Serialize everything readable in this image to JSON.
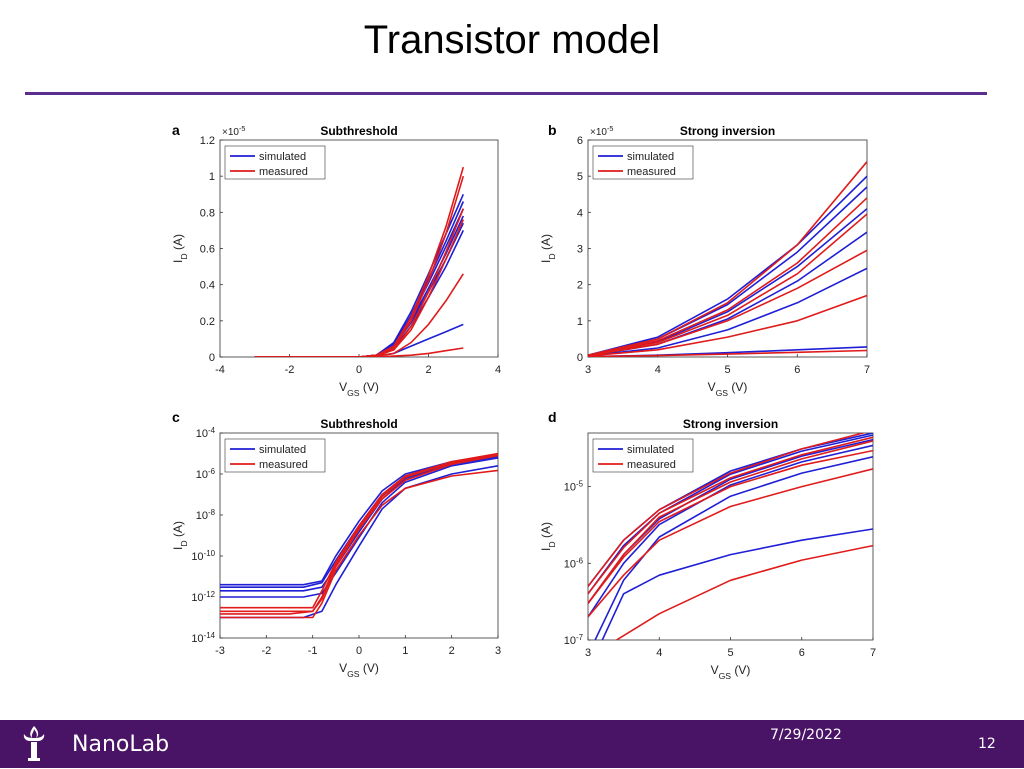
{
  "slide": {
    "title": "Transistor model",
    "footer_label": "NanoLab",
    "date": "7/29/2022",
    "page_number": "12",
    "accent_color": "#5b2d8e",
    "footer_color": "#4a1466",
    "logo_icon": "torch-icon"
  },
  "chart_data": [
    {
      "panel": "a",
      "type": "line",
      "title": "Subthreshold",
      "xlabel": "V_GS (V)",
      "ylabel": "I_D (A)",
      "yscale": "linear",
      "y_exponent": "×10^-5",
      "xlim": [
        -4,
        4
      ],
      "ylim": [
        0,
        1.2
      ],
      "xticks": [
        "-4",
        "-2",
        "0",
        "2",
        "4"
      ],
      "yticks": [
        "0",
        "0.2",
        "0.4",
        "0.6",
        "0.8",
        "1",
        "1.2"
      ],
      "legend": [
        "simulated",
        "measured"
      ],
      "legend_position": "top-left",
      "colors": {
        "simulated": "#1f1fd6",
        "measured": "#e01b1b"
      },
      "series": [
        {
          "group": "simulated",
          "x": [
            -3,
            -2,
            -1,
            0,
            0.5,
            1,
            1.5,
            2,
            2.5,
            3
          ],
          "y": [
            0,
            0,
            0,
            0,
            0.01,
            0.08,
            0.25,
            0.46,
            0.68,
            0.9
          ]
        },
        {
          "group": "simulated",
          "x": [
            -3,
            -2,
            -1,
            0,
            0.5,
            1,
            1.5,
            2,
            2.5,
            3
          ],
          "y": [
            0,
            0,
            0,
            0,
            0.01,
            0.07,
            0.23,
            0.43,
            0.64,
            0.86
          ]
        },
        {
          "group": "simulated",
          "x": [
            -3,
            -2,
            -1,
            0,
            0.5,
            1,
            1.5,
            2,
            2.5,
            3
          ],
          "y": [
            0,
            0,
            0,
            0,
            0.01,
            0.07,
            0.22,
            0.41,
            0.61,
            0.82
          ]
        },
        {
          "group": "simulated",
          "x": [
            -3,
            -2,
            -1,
            0,
            0.5,
            1,
            1.5,
            2,
            2.5,
            3
          ],
          "y": [
            0,
            0,
            0,
            0,
            0.01,
            0.06,
            0.2,
            0.38,
            0.57,
            0.78
          ]
        },
        {
          "group": "simulated",
          "x": [
            -3,
            -2,
            -1,
            0,
            0.5,
            1,
            1.5,
            2,
            2.5,
            3
          ],
          "y": [
            0,
            0,
            0,
            0,
            0.01,
            0.06,
            0.19,
            0.36,
            0.54,
            0.74
          ]
        },
        {
          "group": "simulated",
          "x": [
            -3,
            -2,
            -1,
            0,
            0.5,
            1,
            1.5,
            2,
            2.5,
            3
          ],
          "y": [
            0,
            0,
            0,
            0,
            0.01,
            0.05,
            0.17,
            0.33,
            0.5,
            0.7
          ]
        },
        {
          "group": "simulated",
          "x": [
            -3,
            -2,
            -1,
            0,
            0.5,
            1,
            1.5,
            2,
            2.5,
            3
          ],
          "y": [
            0,
            0,
            0,
            0,
            0.005,
            0.02,
            0.06,
            0.1,
            0.14,
            0.18
          ]
        },
        {
          "group": "measured",
          "x": [
            -3,
            -2,
            -1,
            0,
            0.5,
            1,
            1.5,
            2,
            2.5,
            3
          ],
          "y": [
            0,
            0,
            0,
            0,
            0.01,
            0.06,
            0.22,
            0.45,
            0.72,
            1.05
          ]
        },
        {
          "group": "measured",
          "x": [
            -3,
            -2,
            -1,
            0,
            0.5,
            1,
            1.5,
            2,
            2.5,
            3
          ],
          "y": [
            0,
            0,
            0,
            0,
            0.01,
            0.05,
            0.2,
            0.42,
            0.68,
            1.0
          ]
        },
        {
          "group": "measured",
          "x": [
            -3,
            -2,
            -1,
            0,
            0.5,
            1,
            1.5,
            2,
            2.5,
            3
          ],
          "y": [
            0,
            0,
            0,
            0,
            0.01,
            0.04,
            0.17,
            0.36,
            0.58,
            0.82
          ]
        },
        {
          "group": "measured",
          "x": [
            -3,
            -2,
            -1,
            0,
            0.5,
            1,
            1.5,
            2,
            2.5,
            3
          ],
          "y": [
            0,
            0,
            0,
            0,
            0.005,
            0.04,
            0.15,
            0.33,
            0.54,
            0.76
          ]
        },
        {
          "group": "measured",
          "x": [
            -3,
            -2,
            -1,
            0,
            0.5,
            1,
            1.5,
            2,
            2.5,
            3
          ],
          "y": [
            0,
            0,
            0,
            0,
            0.005,
            0.02,
            0.08,
            0.18,
            0.31,
            0.46
          ]
        },
        {
          "group": "measured",
          "x": [
            -3,
            -2,
            -1,
            0,
            0.5,
            1,
            1.5,
            2,
            2.5,
            3
          ],
          "y": [
            0,
            0,
            0,
            0,
            0,
            0.005,
            0.01,
            0.02,
            0.035,
            0.05
          ]
        }
      ]
    },
    {
      "panel": "b",
      "type": "line",
      "title": "Strong inversion",
      "xlabel": "V_GS (V)",
      "ylabel": "I_D (A)",
      "yscale": "linear",
      "y_exponent": "×10^-5",
      "xlim": [
        3,
        7
      ],
      "ylim": [
        0,
        6
      ],
      "xticks": [
        "3",
        "4",
        "5",
        "6",
        "7"
      ],
      "yticks": [
        "0",
        "1",
        "2",
        "3",
        "4",
        "5",
        "6"
      ],
      "legend": [
        "simulated",
        "measured"
      ],
      "legend_position": "top-left",
      "colors": {
        "simulated": "#1f1fd6",
        "measured": "#e01b1b"
      },
      "series": [
        {
          "group": "simulated",
          "x": [
            3,
            4,
            5,
            6,
            7
          ],
          "y": [
            0.05,
            0.55,
            1.6,
            3.1,
            5.0
          ]
        },
        {
          "group": "simulated",
          "x": [
            3,
            4,
            5,
            6,
            7
          ],
          "y": [
            0.05,
            0.5,
            1.45,
            2.9,
            4.7
          ]
        },
        {
          "group": "simulated",
          "x": [
            3,
            4,
            5,
            6,
            7
          ],
          "y": [
            0.04,
            0.42,
            1.25,
            2.5,
            4.1
          ]
        },
        {
          "group": "simulated",
          "x": [
            3,
            4,
            5,
            6,
            7
          ],
          "y": [
            0.03,
            0.35,
            1.05,
            2.1,
            3.45
          ]
        },
        {
          "group": "simulated",
          "x": [
            3,
            4,
            5,
            6,
            7
          ],
          "y": [
            0.03,
            0.25,
            0.75,
            1.5,
            2.45
          ]
        },
        {
          "group": "simulated",
          "x": [
            3,
            4,
            5,
            6,
            7
          ],
          "y": [
            0.01,
            0.05,
            0.12,
            0.2,
            0.28
          ]
        },
        {
          "group": "measured",
          "x": [
            3,
            4,
            5,
            6,
            7
          ],
          "y": [
            0.05,
            0.5,
            1.5,
            3.1,
            5.4
          ]
        },
        {
          "group": "measured",
          "x": [
            3,
            4,
            5,
            6,
            7
          ],
          "y": [
            0.05,
            0.45,
            1.3,
            2.6,
            4.4
          ]
        },
        {
          "group": "measured",
          "x": [
            3,
            4,
            5,
            6,
            7
          ],
          "y": [
            0.04,
            0.4,
            1.15,
            2.3,
            3.95
          ]
        },
        {
          "group": "measured",
          "x": [
            3,
            4,
            5,
            6,
            7
          ],
          "y": [
            0.04,
            0.35,
            1.0,
            1.9,
            2.95
          ]
        },
        {
          "group": "measured",
          "x": [
            3,
            4,
            5,
            6,
            7
          ],
          "y": [
            0.03,
            0.2,
            0.55,
            1.0,
            1.7
          ]
        },
        {
          "group": "measured",
          "x": [
            3,
            4,
            5,
            6,
            7
          ],
          "y": [
            0.01,
            0.04,
            0.08,
            0.13,
            0.18
          ]
        }
      ]
    },
    {
      "panel": "c",
      "type": "line",
      "title": "Subthreshold",
      "xlabel": "V_GS (V)",
      "ylabel": "I_D (A)",
      "yscale": "log",
      "xlim": [
        -3,
        3
      ],
      "ylim": [
        1e-14,
        0.0001
      ],
      "xticks": [
        "-3",
        "-2",
        "-1",
        "0",
        "1",
        "2",
        "3"
      ],
      "yticks": [
        "10^-14",
        "10^-12",
        "10^-10",
        "10^-8",
        "10^-6",
        "10^-4"
      ],
      "legend": [
        "simulated",
        "measured"
      ],
      "legend_position": "top-left",
      "colors": {
        "simulated": "#1f1fd6",
        "measured": "#e01b1b"
      },
      "series": [
        {
          "group": "simulated",
          "x": [
            -3,
            -1.2,
            -0.8,
            -0.5,
            0,
            0.5,
            1,
            2,
            3
          ],
          "y": [
            4e-12,
            4e-12,
            6e-12,
            1e-10,
            5e-09,
            1.5e-07,
            1e-06,
            4e-06,
            9e-06
          ]
        },
        {
          "group": "simulated",
          "x": [
            -3,
            -1.2,
            -0.8,
            -0.5,
            0,
            0.5,
            1,
            2,
            3
          ],
          "y": [
            3e-12,
            3e-12,
            5e-12,
            6e-11,
            3e-09,
            1e-07,
            8e-07,
            3.5e-06,
            8e-06
          ]
        },
        {
          "group": "simulated",
          "x": [
            -3,
            -1.2,
            -0.8,
            -0.5,
            0,
            0.5,
            1,
            2,
            3
          ],
          "y": [
            2e-12,
            2e-12,
            3e-12,
            3e-11,
            1.5e-09,
            6e-08,
            6e-07,
            3e-06,
            7e-06
          ]
        },
        {
          "group": "simulated",
          "x": [
            -3,
            -1.2,
            -0.8,
            -0.5,
            0,
            0.5,
            1,
            2,
            3
          ],
          "y": [
            1e-12,
            1e-12,
            1.5e-12,
            1.5e-11,
            8e-10,
            4e-08,
            4e-07,
            2.5e-06,
            6e-06
          ]
        },
        {
          "group": "simulated",
          "x": [
            -3,
            -1.2,
            -0.8,
            -0.5,
            0,
            0.5,
            1,
            2,
            3
          ],
          "y": [
            1e-13,
            1e-13,
            2e-13,
            4e-12,
            3e-10,
            2e-08,
            2e-07,
            1e-06,
            2.5e-06
          ]
        },
        {
          "group": "measured",
          "x": [
            -3,
            -1.5,
            -1,
            -0.8,
            -0.5,
            0,
            0.5,
            1,
            2,
            3
          ],
          "y": [
            3e-13,
            3e-13,
            3e-13,
            2e-12,
            5e-11,
            3e-09,
            1e-07,
            8e-07,
            4e-06,
            1e-05
          ]
        },
        {
          "group": "measured",
          "x": [
            -3,
            -1.5,
            -1,
            -0.8,
            -0.5,
            0,
            0.5,
            1,
            2,
            3
          ],
          "y": [
            2e-13,
            2e-13,
            2e-13,
            1e-12,
            4e-11,
            2.5e-09,
            8e-08,
            7e-07,
            3.5e-06,
            9e-06
          ]
        },
        {
          "group": "measured",
          "x": [
            -3,
            -1.5,
            -1,
            -0.8,
            -0.5,
            0,
            0.5,
            1,
            2,
            3
          ],
          "y": [
            1.5e-13,
            1.5e-13,
            2e-13,
            8e-13,
            3e-11,
            2e-09,
            6e-08,
            5e-07,
            3e-06,
            8e-06
          ]
        },
        {
          "group": "measured",
          "x": [
            -3,
            -1.5,
            -1,
            -0.8,
            -0.5,
            0,
            0.5,
            1,
            2,
            3
          ],
          "y": [
            1e-13,
            1e-13,
            1e-13,
            5e-13,
            2e-11,
            1e-09,
            3e-08,
            2e-07,
            8e-07,
            1.5e-06
          ]
        }
      ]
    },
    {
      "panel": "d",
      "type": "line",
      "title": "Strong inversion",
      "xlabel": "V_GS (V)",
      "ylabel": "I_D (A)",
      "yscale": "log",
      "xlim": [
        3,
        7
      ],
      "ylim": [
        1e-07,
        5e-05
      ],
      "xticks": [
        "3",
        "4",
        "5",
        "6",
        "7"
      ],
      "yticks": [
        "10^-7",
        "10^-6",
        "10^-5"
      ],
      "legend": [
        "simulated",
        "measured"
      ],
      "legend_position": "top-left",
      "colors": {
        "simulated": "#1f1fd6",
        "measured": "#e01b1b"
      },
      "series": [
        {
          "group": "simulated",
          "x": [
            3,
            3.5,
            4,
            5,
            6,
            7
          ],
          "y": [
            5e-07,
            2e-06,
            5e-06,
            1.6e-05,
            3.1e-05,
            5e-05
          ]
        },
        {
          "group": "simulated",
          "x": [
            3,
            3.5,
            4,
            5,
            6,
            7
          ],
          "y": [
            4e-07,
            1.7e-06,
            4.5e-06,
            1.45e-05,
            2.9e-05,
            4.7e-05
          ]
        },
        {
          "group": "simulated",
          "x": [
            3,
            3.5,
            4,
            5,
            6,
            7
          ],
          "y": [
            3e-07,
            1.3e-06,
            3.8e-06,
            1.25e-05,
            2.5e-05,
            4.1e-05
          ]
        },
        {
          "group": "simulated",
          "x": [
            3,
            3.5,
            4,
            5,
            6,
            7
          ],
          "y": [
            2e-07,
            1e-06,
            3.2e-06,
            1.05e-05,
            2.1e-05,
            3.45e-05
          ]
        },
        {
          "group": "simulated",
          "x": [
            3.1,
            3.5,
            4,
            5,
            6,
            7
          ],
          "y": [
            1e-07,
            6e-07,
            2.2e-06,
            7.5e-06,
            1.5e-05,
            2.45e-05
          ]
        },
        {
          "group": "simulated",
          "x": [
            3.2,
            3.5,
            4,
            5,
            6,
            7
          ],
          "y": [
            1e-07,
            4e-07,
            7e-07,
            1.3e-06,
            2e-06,
            2.8e-06
          ]
        },
        {
          "group": "measured",
          "x": [
            3,
            3.5,
            4,
            5,
            6,
            7
          ],
          "y": [
            5e-07,
            2e-06,
            5e-06,
            1.5e-05,
            3.1e-05,
            5.4e-05
          ]
        },
        {
          "group": "measured",
          "x": [
            3,
            3.5,
            4,
            5,
            6,
            7
          ],
          "y": [
            4e-07,
            1.6e-06,
            4.5e-06,
            1.3e-05,
            2.6e-05,
            4.4e-05
          ]
        },
        {
          "group": "measured",
          "x": [
            3,
            3.5,
            4,
            5,
            6,
            7
          ],
          "y": [
            3e-07,
            1.3e-06,
            4e-06,
            1.15e-05,
            2.3e-05,
            3.95e-05
          ]
        },
        {
          "group": "measured",
          "x": [
            3,
            3.5,
            4,
            5,
            6,
            7
          ],
          "y": [
            3e-07,
            1.2e-06,
            3.5e-06,
            1e-05,
            1.9e-05,
            2.95e-05
          ]
        },
        {
          "group": "measured",
          "x": [
            3,
            3.5,
            4,
            5,
            6,
            7
          ],
          "y": [
            2e-07,
            7e-07,
            2e-06,
            5.5e-06,
            1e-05,
            1.7e-05
          ]
        },
        {
          "group": "measured",
          "x": [
            3.4,
            4,
            5,
            6,
            7
          ],
          "y": [
            1e-07,
            2.2e-07,
            6e-07,
            1.1e-06,
            1.7e-06
          ]
        }
      ]
    }
  ]
}
